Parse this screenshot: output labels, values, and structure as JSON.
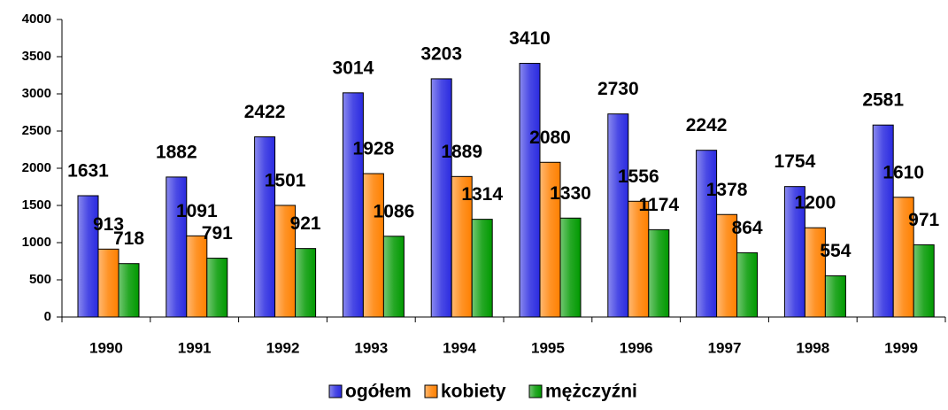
{
  "chart_data": {
    "type": "bar",
    "categories": [
      "1990",
      "1991",
      "1992",
      "1993",
      "1994",
      "1995",
      "1996",
      "1997",
      "1998",
      "1999"
    ],
    "series": [
      {
        "name": "ogółem",
        "color": "#2a2ae0",
        "values": [
          1631,
          1882,
          2422,
          3014,
          3203,
          3410,
          2730,
          2242,
          1754,
          2581
        ]
      },
      {
        "name": "kobiety",
        "color": "#ff8000",
        "values": [
          913,
          1091,
          1501,
          1928,
          1889,
          2080,
          1556,
          1378,
          1200,
          1610
        ]
      },
      {
        "name": "mężczyźni",
        "color": "#009900",
        "values": [
          718,
          791,
          921,
          1086,
          1314,
          1330,
          1174,
          864,
          554,
          971
        ]
      }
    ],
    "ylim": [
      0,
      4000
    ],
    "yticks": [
      0,
      500,
      1000,
      1500,
      2000,
      2500,
      3000,
      3500,
      4000
    ],
    "legend": "bottom",
    "data_labels": true
  }
}
